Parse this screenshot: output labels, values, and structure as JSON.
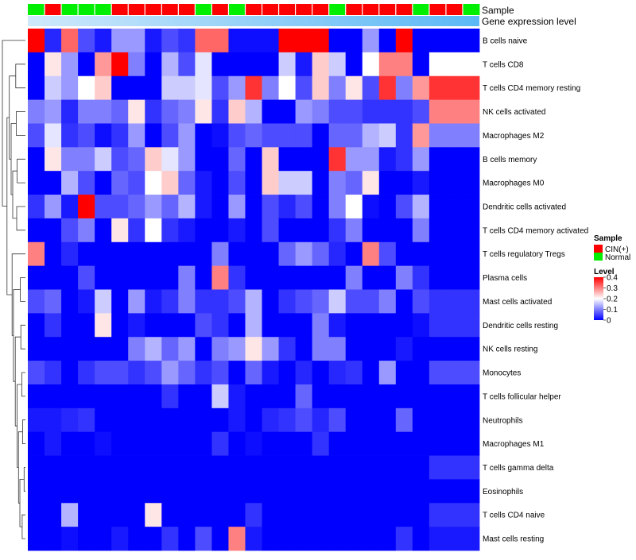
{
  "chart_data": {
    "type": "heatmap",
    "title": "",
    "annotation_rows": [
      "Sample",
      "Gene expression level"
    ],
    "sample_groups": [
      "N",
      "C",
      "N",
      "N",
      "N",
      "C",
      "C",
      "C",
      "C",
      "C",
      "N",
      "C",
      "N",
      "C",
      "C",
      "C",
      "C",
      "C",
      "N",
      "C",
      "C",
      "C",
      "C",
      "N",
      "C",
      "C",
      "N"
    ],
    "expression_gradient": {
      "from": "#cfe9fb",
      "to": "#5bb8f5"
    },
    "rows": [
      "B cells naive",
      "T cells CD8",
      "T cells CD4 memory resting",
      "NK cells activated",
      "Macrophages M2",
      "B cells memory",
      "Macrophages M0",
      "Dendritic cells activated",
      "T cells CD4 memory activated",
      "T cells regulatory  Tregs",
      "Plasma cells",
      "Mast cells activated",
      "Dendritic cells resting",
      "NK cells resting",
      "Monocytes",
      "T cells follicular helper",
      "Neutrophils",
      "Macrophages M1",
      "T cells gamma delta",
      "Eosinophils",
      "T cells CD4 naive",
      "Mast cells resting"
    ],
    "values": [
      [
        0.4,
        0.03,
        0.32,
        0.06,
        0.02,
        0.12,
        0.12,
        0.02,
        0.06,
        0.04,
        0.32,
        0.32,
        0.01,
        0.01,
        0.01,
        0.4,
        0.4,
        0.4,
        0.0,
        0.0,
        0.12,
        0.0,
        0.4,
        0.0,
        0.0,
        0.0,
        0.0
      ],
      [
        0.0,
        0.22,
        0.12,
        0.0,
        0.28,
        0.4,
        0.1,
        0.0,
        0.14,
        0.06,
        0.18,
        0.0,
        0.0,
        0.0,
        0.0,
        0.16,
        0.02,
        0.24,
        0.16,
        0.0,
        0.2,
        0.3,
        0.3,
        0.0,
        0.2,
        0.2,
        0.2
      ],
      [
        0.0,
        0.16,
        0.12,
        0.2,
        0.24,
        0.0,
        0.0,
        0.0,
        0.16,
        0.16,
        0.18,
        0.06,
        0.12,
        0.36,
        0.1,
        0.2,
        0.06,
        0.24,
        0.1,
        0.22,
        0.06,
        0.36,
        0.1,
        0.28,
        0.36,
        0.36,
        0.36
      ],
      [
        0.1,
        0.12,
        0.03,
        0.1,
        0.1,
        0.08,
        0.22,
        0.04,
        0.08,
        0.1,
        0.22,
        0.04,
        0.24,
        0.14,
        0.0,
        0.0,
        0.12,
        0.1,
        0.06,
        0.06,
        0.04,
        0.04,
        0.04,
        0.06,
        0.3,
        0.3,
        0.3
      ],
      [
        0.06,
        0.18,
        0.04,
        0.06,
        0.01,
        0.04,
        0.12,
        0.0,
        0.06,
        0.12,
        0.0,
        0.01,
        0.06,
        0.08,
        0.06,
        0.06,
        0.06,
        0.0,
        0.08,
        0.08,
        0.14,
        0.16,
        0.04,
        0.28,
        0.1,
        0.1,
        0.1
      ],
      [
        0.0,
        0.22,
        0.1,
        0.1,
        0.16,
        0.06,
        0.08,
        0.24,
        0.18,
        0.12,
        0.0,
        0.0,
        0.08,
        0.0,
        0.24,
        0.0,
        0.0,
        0.0,
        0.36,
        0.12,
        0.12,
        0.02,
        0.04,
        0.12,
        0.0,
        0.0,
        0.0
      ],
      [
        0.0,
        0.0,
        0.14,
        0.06,
        0.0,
        0.08,
        0.06,
        0.2,
        0.24,
        0.08,
        0.02,
        0.0,
        0.06,
        0.0,
        0.24,
        0.16,
        0.16,
        0.0,
        0.1,
        0.08,
        0.22,
        0.0,
        0.0,
        0.02,
        0.0,
        0.0,
        0.0
      ],
      [
        0.04,
        0.12,
        0.02,
        0.4,
        0.06,
        0.06,
        0.08,
        0.12,
        0.08,
        0.14,
        0.02,
        0.0,
        0.12,
        0.0,
        0.06,
        0.03,
        0.06,
        0.0,
        0.1,
        0.2,
        0.01,
        0.0,
        0.06,
        0.14,
        0.0,
        0.0,
        0.0
      ],
      [
        0.0,
        0.0,
        0.06,
        0.1,
        0.0,
        0.22,
        0.04,
        0.2,
        0.04,
        0.02,
        0.0,
        0.0,
        0.02,
        0.0,
        0.06,
        0.0,
        0.0,
        0.0,
        0.04,
        0.1,
        0.0,
        0.0,
        0.0,
        0.1,
        0.0,
        0.0,
        0.0
      ],
      [
        0.3,
        0.0,
        0.03,
        0.0,
        0.0,
        0.0,
        0.0,
        0.0,
        0.0,
        0.0,
        0.0,
        0.1,
        0.0,
        0.0,
        0.0,
        0.08,
        0.12,
        0.08,
        0.03,
        0.0,
        0.3,
        0.06,
        0.0,
        0.0,
        0.0,
        0.0,
        0.0
      ],
      [
        0.0,
        0.0,
        0.0,
        0.06,
        0.0,
        0.0,
        0.0,
        0.0,
        0.0,
        0.1,
        0.0,
        0.3,
        0.04,
        0.0,
        0.0,
        0.0,
        0.0,
        0.0,
        0.0,
        0.1,
        0.0,
        0.0,
        0.1,
        0.04,
        0.0,
        0.0,
        0.0
      ],
      [
        0.06,
        0.08,
        0.0,
        0.02,
        0.16,
        0.0,
        0.12,
        0.02,
        0.04,
        0.1,
        0.04,
        0.04,
        0.06,
        0.14,
        0.0,
        0.04,
        0.06,
        0.08,
        0.16,
        0.06,
        0.06,
        0.1,
        0.0,
        0.06,
        0.04,
        0.04,
        0.04
      ],
      [
        0.0,
        0.04,
        0.0,
        0.0,
        0.22,
        0.0,
        0.02,
        0.0,
        0.0,
        0.0,
        0.06,
        0.04,
        0.0,
        0.14,
        0.0,
        0.0,
        0.0,
        0.1,
        0.02,
        0.0,
        0.0,
        0.0,
        0.0,
        0.01,
        0.04,
        0.04,
        0.04
      ],
      [
        0.0,
        0.0,
        0.0,
        0.0,
        0.0,
        0.0,
        0.1,
        0.14,
        0.08,
        0.12,
        0.0,
        0.1,
        0.12,
        0.22,
        0.12,
        0.04,
        0.0,
        0.1,
        0.1,
        0.0,
        0.0,
        0.0,
        0.02,
        0.0,
        0.0,
        0.0,
        0.0
      ],
      [
        0.06,
        0.04,
        0.0,
        0.04,
        0.06,
        0.06,
        0.04,
        0.06,
        0.12,
        0.08,
        0.04,
        0.06,
        0.0,
        0.08,
        0.02,
        0.0,
        0.03,
        0.0,
        0.03,
        0.04,
        0.0,
        0.12,
        0.0,
        0.0,
        0.06,
        0.06,
        0.06
      ],
      [
        0.0,
        0.0,
        0.0,
        0.0,
        0.0,
        0.0,
        0.0,
        0.0,
        0.04,
        0.0,
        0.0,
        0.16,
        0.02,
        0.0,
        0.0,
        0.0,
        0.08,
        0.0,
        0.0,
        0.0,
        0.0,
        0.0,
        0.0,
        0.0,
        0.0,
        0.0,
        0.0
      ],
      [
        0.02,
        0.02,
        0.03,
        0.04,
        0.0,
        0.0,
        0.0,
        0.0,
        0.0,
        0.0,
        0.0,
        0.0,
        0.02,
        0.0,
        0.03,
        0.04,
        0.06,
        0.03,
        0.06,
        0.0,
        0.0,
        0.0,
        0.08,
        0.0,
        0.0,
        0.0,
        0.0
      ],
      [
        0.0,
        0.02,
        0.0,
        0.0,
        0.01,
        0.0,
        0.0,
        0.0,
        0.0,
        0.0,
        0.0,
        0.04,
        0.0,
        0.01,
        0.0,
        0.0,
        0.0,
        0.04,
        0.0,
        0.0,
        0.0,
        0.0,
        0.0,
        0.0,
        0.0,
        0.0,
        0.0
      ],
      [
        0.0,
        0.0,
        0.0,
        0.0,
        0.0,
        0.0,
        0.0,
        0.0,
        0.0,
        0.0,
        0.0,
        0.0,
        0.0,
        0.0,
        0.0,
        0.0,
        0.0,
        0.0,
        0.0,
        0.0,
        0.0,
        0.0,
        0.0,
        0.0,
        0.04,
        0.04,
        0.04
      ],
      [
        0.0,
        0.0,
        0.0,
        0.0,
        0.0,
        0.0,
        0.0,
        0.0,
        0.0,
        0.0,
        0.0,
        0.0,
        0.0,
        0.0,
        0.0,
        0.0,
        0.0,
        0.0,
        0.0,
        0.0,
        0.0,
        0.0,
        0.0,
        0.0,
        0.0,
        0.0,
        0.0
      ],
      [
        0.0,
        0.0,
        0.14,
        0.0,
        0.0,
        0.0,
        0.0,
        0.22,
        0.0,
        0.0,
        0.0,
        0.0,
        0.0,
        0.04,
        0.0,
        0.0,
        0.0,
        0.0,
        0.0,
        0.0,
        0.0,
        0.0,
        0.0,
        0.0,
        0.04,
        0.04,
        0.04
      ],
      [
        0.0,
        0.0,
        0.01,
        0.0,
        0.0,
        0.02,
        0.0,
        0.0,
        0.04,
        0.0,
        0.06,
        0.0,
        0.3,
        0.02,
        0.0,
        0.0,
        0.0,
        0.0,
        0.0,
        0.0,
        0.0,
        0.0,
        0.04,
        0.0,
        0.02,
        0.02,
        0.02
      ]
    ],
    "color_scale": {
      "domain": [
        0,
        0.2,
        0.4
      ],
      "colors": [
        "#0000ff",
        "#ffffff",
        "#ff0000"
      ]
    },
    "legends": [
      {
        "title": "Sample",
        "entries": [
          {
            "label": "CIN(+)",
            "color": "#ff0000"
          },
          {
            "label": "Normal",
            "color": "#00ee00"
          }
        ]
      },
      {
        "title": "Level",
        "ticks": [
          "0.4",
          "0.3",
          "0.2",
          "0.1",
          "0"
        ]
      }
    ]
  }
}
